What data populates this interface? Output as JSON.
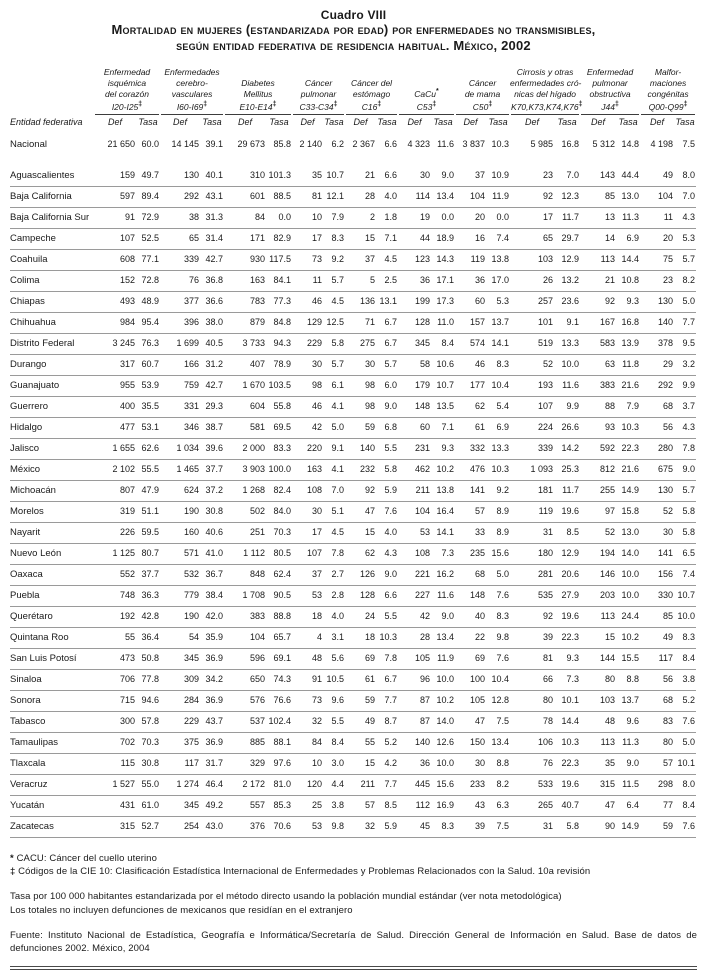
{
  "title": {
    "cuadro": "Cuadro VIII",
    "line1": "Mortalidad en mujeres (estandarizada por edad) por enfermedades no transmisibles,",
    "line2": "según entidad federativa de residencia habitual. México, 2002"
  },
  "colors": {
    "text": "#1a1a1a",
    "row_rule": "#9a9a9a",
    "header_rule": "#3c3c3c",
    "background": "#ffffff"
  },
  "table": {
    "row_header": "Entidad federativa",
    "def_label": "Def",
    "tasa_label": "Tasa",
    "groups": [
      {
        "id": "isquemica",
        "lines": [
          "Enfermedad",
          "isquémica",
          "del corazón"
        ],
        "code": "I20-I25",
        "marker": "‡"
      },
      {
        "id": "cerebrovasculares",
        "lines": [
          "Enfermedades",
          "cerebro-",
          "vasculares"
        ],
        "code": "I60-I69",
        "marker": "‡"
      },
      {
        "id": "diabetes",
        "lines": [
          "Diabetes",
          "Mellitus"
        ],
        "code": "E10-E14",
        "marker": "‡"
      },
      {
        "id": "cancer-pulmonar",
        "lines": [
          "Cáncer",
          "pulmonar"
        ],
        "code": "C33-C34",
        "marker": "‡"
      },
      {
        "id": "cancer-estomago",
        "lines": [
          "Cáncer del",
          "estómago"
        ],
        "code": "C16",
        "marker": "‡"
      },
      {
        "id": "cacu",
        "lines": [
          "CaCu*"
        ],
        "code": "C53",
        "marker": "‡"
      },
      {
        "id": "cancer-mama",
        "lines": [
          "Cáncer",
          "de mama"
        ],
        "code": "C50",
        "marker": "‡"
      },
      {
        "id": "cirrosis",
        "lines": [
          "Cirrosis y otras",
          "enfermedades cró-",
          "nicas del hígado"
        ],
        "code": "K70,K73,K74,K76",
        "marker": "‡"
      },
      {
        "id": "epoc",
        "lines": [
          "Enfermedad",
          "pulmonar",
          "obstructiva"
        ],
        "code": "J44",
        "marker": "‡"
      },
      {
        "id": "malformaciones",
        "lines": [
          "Malfor-",
          "maciones",
          "congénitas"
        ],
        "code": "Q00-Q99",
        "marker": "‡"
      }
    ],
    "rows": [
      {
        "name": "Nacional",
        "values": [
          "21 650",
          "60.0",
          "14 145",
          "39.1",
          "29 673",
          "85.8",
          "2 140",
          "6.2",
          "2 367",
          "6.6",
          "4 323",
          "11.6",
          "3 837",
          "10.3",
          "5 985",
          "16.8",
          "5 312",
          "14.8",
          "4 198",
          "7.5"
        ]
      },
      {
        "name": "Aguascalientes",
        "values": [
          "159",
          "49.7",
          "130",
          "40.1",
          "310",
          "101.3",
          "35",
          "10.7",
          "21",
          "6.6",
          "30",
          "9.0",
          "37",
          "10.9",
          "23",
          "7.0",
          "143",
          "44.4",
          "49",
          "8.0"
        ]
      },
      {
        "name": "Baja California",
        "values": [
          "597",
          "89.4",
          "292",
          "43.1",
          "601",
          "88.5",
          "81",
          "12.1",
          "28",
          "4.0",
          "114",
          "13.4",
          "104",
          "11.9",
          "92",
          "12.3",
          "85",
          "13.0",
          "104",
          "7.0"
        ]
      },
      {
        "name": "Baja California Sur",
        "values": [
          "91",
          "72.9",
          "38",
          "31.3",
          "84",
          "0.0",
          "10",
          "7.9",
          "2",
          "1.8",
          "19",
          "0.0",
          "20",
          "0.0",
          "17",
          "11.7",
          "13",
          "11.3",
          "11",
          "4.3"
        ]
      },
      {
        "name": "Campeche",
        "values": [
          "107",
          "52.5",
          "65",
          "31.4",
          "171",
          "82.9",
          "17",
          "8.3",
          "15",
          "7.1",
          "44",
          "18.9",
          "16",
          "7.4",
          "65",
          "29.7",
          "14",
          "6.9",
          "20",
          "5.3"
        ]
      },
      {
        "name": "Coahuila",
        "values": [
          "608",
          "77.1",
          "339",
          "42.7",
          "930",
          "117.5",
          "73",
          "9.2",
          "37",
          "4.5",
          "123",
          "14.3",
          "119",
          "13.8",
          "103",
          "12.9",
          "113",
          "14.4",
          "75",
          "5.7"
        ]
      },
      {
        "name": "Colima",
        "values": [
          "152",
          "72.8",
          "76",
          "36.8",
          "163",
          "84.1",
          "11",
          "5.7",
          "5",
          "2.5",
          "36",
          "17.1",
          "36",
          "17.0",
          "26",
          "13.2",
          "21",
          "10.8",
          "23",
          "8.2"
        ]
      },
      {
        "name": "Chiapas",
        "values": [
          "493",
          "48.9",
          "377",
          "36.6",
          "783",
          "77.3",
          "46",
          "4.5",
          "136",
          "13.1",
          "199",
          "17.3",
          "60",
          "5.3",
          "257",
          "23.6",
          "92",
          "9.3",
          "130",
          "5.0"
        ]
      },
      {
        "name": "Chihuahua",
        "values": [
          "984",
          "95.4",
          "396",
          "38.0",
          "879",
          "84.8",
          "129",
          "12.5",
          "71",
          "6.7",
          "128",
          "11.0",
          "157",
          "13.7",
          "101",
          "9.1",
          "167",
          "16.8",
          "140",
          "7.7"
        ]
      },
      {
        "name": "Distrito Federal",
        "values": [
          "3 245",
          "76.3",
          "1 699",
          "40.5",
          "3 733",
          "94.3",
          "229",
          "5.8",
          "275",
          "6.7",
          "345",
          "8.4",
          "574",
          "14.1",
          "519",
          "13.3",
          "583",
          "13.9",
          "378",
          "9.5"
        ]
      },
      {
        "name": "Durango",
        "values": [
          "317",
          "60.7",
          "166",
          "31.2",
          "407",
          "78.9",
          "30",
          "5.7",
          "30",
          "5.7",
          "58",
          "10.6",
          "46",
          "8.3",
          "52",
          "10.0",
          "63",
          "11.8",
          "29",
          "3.2"
        ]
      },
      {
        "name": "Guanajuato",
        "values": [
          "955",
          "53.9",
          "759",
          "42.7",
          "1 670",
          "103.5",
          "98",
          "6.1",
          "98",
          "6.0",
          "179",
          "10.7",
          "177",
          "10.4",
          "193",
          "11.6",
          "383",
          "21.6",
          "292",
          "9.9"
        ]
      },
      {
        "name": "Guerrero",
        "values": [
          "400",
          "35.5",
          "331",
          "29.3",
          "604",
          "55.8",
          "46",
          "4.1",
          "98",
          "9.0",
          "148",
          "13.5",
          "62",
          "5.4",
          "107",
          "9.9",
          "88",
          "7.9",
          "68",
          "3.7"
        ]
      },
      {
        "name": "Hidalgo",
        "values": [
          "477",
          "53.1",
          "346",
          "38.7",
          "581",
          "69.5",
          "42",
          "5.0",
          "59",
          "6.8",
          "60",
          "7.1",
          "61",
          "6.9",
          "224",
          "26.6",
          "93",
          "10.3",
          "56",
          "4.3"
        ]
      },
      {
        "name": "Jalisco",
        "values": [
          "1 655",
          "62.6",
          "1 034",
          "39.6",
          "2 000",
          "83.3",
          "220",
          "9.1",
          "140",
          "5.5",
          "231",
          "9.3",
          "332",
          "13.3",
          "339",
          "14.2",
          "592",
          "22.3",
          "280",
          "7.8"
        ]
      },
      {
        "name": "México",
        "values": [
          "2 102",
          "55.5",
          "1 465",
          "37.7",
          "3 903",
          "100.0",
          "163",
          "4.1",
          "232",
          "5.8",
          "462",
          "10.2",
          "476",
          "10.3",
          "1 093",
          "25.3",
          "812",
          "21.6",
          "675",
          "9.0"
        ]
      },
      {
        "name": "Michoacán",
        "values": [
          "807",
          "47.9",
          "624",
          "37.2",
          "1 268",
          "82.4",
          "108",
          "7.0",
          "92",
          "5.9",
          "211",
          "13.8",
          "141",
          "9.2",
          "181",
          "11.7",
          "255",
          "14.9",
          "130",
          "5.7"
        ]
      },
      {
        "name": "Morelos",
        "values": [
          "319",
          "51.1",
          "190",
          "30.8",
          "502",
          "84.0",
          "30",
          "5.1",
          "47",
          "7.6",
          "104",
          "16.4",
          "57",
          "8.9",
          "119",
          "19.6",
          "97",
          "15.8",
          "52",
          "5.8"
        ]
      },
      {
        "name": "Nayarit",
        "values": [
          "226",
          "59.5",
          "160",
          "40.6",
          "251",
          "70.3",
          "17",
          "4.5",
          "15",
          "4.0",
          "53",
          "14.1",
          "33",
          "8.9",
          "31",
          "8.5",
          "52",
          "13.0",
          "30",
          "5.8"
        ]
      },
      {
        "name": "Nuevo León",
        "values": [
          "1 125",
          "80.7",
          "571",
          "41.0",
          "1 112",
          "80.5",
          "107",
          "7.8",
          "62",
          "4.3",
          "108",
          "7.3",
          "235",
          "15.6",
          "180",
          "12.9",
          "194",
          "14.0",
          "141",
          "6.5"
        ]
      },
      {
        "name": "Oaxaca",
        "values": [
          "552",
          "37.7",
          "532",
          "36.7",
          "848",
          "62.4",
          "37",
          "2.7",
          "126",
          "9.0",
          "221",
          "16.2",
          "68",
          "5.0",
          "281",
          "20.6",
          "146",
          "10.0",
          "156",
          "7.4"
        ]
      },
      {
        "name": "Puebla",
        "values": [
          "748",
          "36.3",
          "779",
          "38.4",
          "1 708",
          "90.5",
          "53",
          "2.8",
          "128",
          "6.6",
          "227",
          "11.6",
          "148",
          "7.6",
          "535",
          "27.9",
          "203",
          "10.0",
          "330",
          "10.7"
        ]
      },
      {
        "name": "Querétaro",
        "values": [
          "192",
          "42.8",
          "190",
          "42.0",
          "383",
          "88.8",
          "18",
          "4.0",
          "24",
          "5.5",
          "42",
          "9.0",
          "40",
          "8.3",
          "92",
          "19.6",
          "113",
          "24.4",
          "85",
          "10.0"
        ]
      },
      {
        "name": "Quintana Roo",
        "values": [
          "55",
          "36.4",
          "54",
          "35.9",
          "104",
          "65.7",
          "4",
          "3.1",
          "18",
          "10.3",
          "28",
          "13.4",
          "22",
          "9.8",
          "39",
          "22.3",
          "15",
          "10.2",
          "49",
          "8.3"
        ]
      },
      {
        "name": "San Luis Potosí",
        "values": [
          "473",
          "50.8",
          "345",
          "36.9",
          "596",
          "69.1",
          "48",
          "5.6",
          "69",
          "7.8",
          "105",
          "11.9",
          "69",
          "7.6",
          "81",
          "9.3",
          "144",
          "15.5",
          "117",
          "8.4"
        ]
      },
      {
        "name": "Sinaloa",
        "values": [
          "706",
          "77.8",
          "309",
          "34.2",
          "650",
          "74.3",
          "91",
          "10.5",
          "61",
          "6.7",
          "96",
          "10.0",
          "100",
          "10.4",
          "66",
          "7.3",
          "80",
          "8.8",
          "56",
          "3.8"
        ]
      },
      {
        "name": "Sonora",
        "values": [
          "715",
          "94.6",
          "284",
          "36.9",
          "576",
          "76.6",
          "73",
          "9.6",
          "59",
          "7.7",
          "87",
          "10.2",
          "105",
          "12.8",
          "80",
          "10.1",
          "103",
          "13.7",
          "68",
          "5.2"
        ]
      },
      {
        "name": "Tabasco",
        "values": [
          "300",
          "57.8",
          "229",
          "43.7",
          "537",
          "102.4",
          "32",
          "5.5",
          "49",
          "8.7",
          "87",
          "14.0",
          "47",
          "7.5",
          "78",
          "14.4",
          "48",
          "9.6",
          "83",
          "7.6"
        ]
      },
      {
        "name": "Tamaulipas",
        "values": [
          "702",
          "70.3",
          "375",
          "36.9",
          "885",
          "88.1",
          "84",
          "8.4",
          "55",
          "5.2",
          "140",
          "12.6",
          "150",
          "13.4",
          "106",
          "10.3",
          "113",
          "11.3",
          "80",
          "5.0"
        ]
      },
      {
        "name": "Tlaxcala",
        "values": [
          "115",
          "30.8",
          "117",
          "31.7",
          "329",
          "97.6",
          "10",
          "3.0",
          "15",
          "4.2",
          "36",
          "10.0",
          "30",
          "8.8",
          "76",
          "22.3",
          "35",
          "9.0",
          "57",
          "10.1"
        ]
      },
      {
        "name": "Veracruz",
        "values": [
          "1 527",
          "55.0",
          "1 274",
          "46.4",
          "2 172",
          "81.0",
          "120",
          "4.4",
          "211",
          "7.7",
          "445",
          "15.6",
          "233",
          "8.2",
          "533",
          "19.6",
          "315",
          "11.5",
          "298",
          "8.0"
        ]
      },
      {
        "name": "Yucatán",
        "values": [
          "431",
          "61.0",
          "345",
          "49.2",
          "557",
          "85.3",
          "25",
          "3.8",
          "57",
          "8.5",
          "112",
          "16.9",
          "43",
          "6.3",
          "265",
          "40.7",
          "47",
          "6.4",
          "77",
          "8.4"
        ]
      },
      {
        "name": "Zacatecas",
        "values": [
          "315",
          "52.7",
          "254",
          "43.0",
          "376",
          "70.6",
          "53",
          "9.8",
          "32",
          "5.9",
          "45",
          "8.3",
          "39",
          "7.5",
          "31",
          "5.8",
          "90",
          "14.9",
          "59",
          "7.6"
        ]
      }
    ]
  },
  "footnotes": {
    "cacu_marker": "*",
    "cacu": "CACU: Cáncer del cuello uterino",
    "cie_marker": "‡",
    "cie": "Códigos de la CIE 10: Clasificación Estadística Internacional de Enfermedades y Problemas Relacionados con la Salud. 10a revisión",
    "tasa": "Tasa por 100 000 habitantes estandarizada por el método directo usando la población mundial estándar (ver nota metodológica)",
    "totales": "Los totales no incluyen defunciones de mexicanos que residían en el extranjero",
    "fuente": "Fuente: Instituto Nacional de Estadística, Geografía e Informática/Secretaría de Salud. Dirección General de Información en Salud. Base de datos de defunciones 2002. México, 2004"
  }
}
